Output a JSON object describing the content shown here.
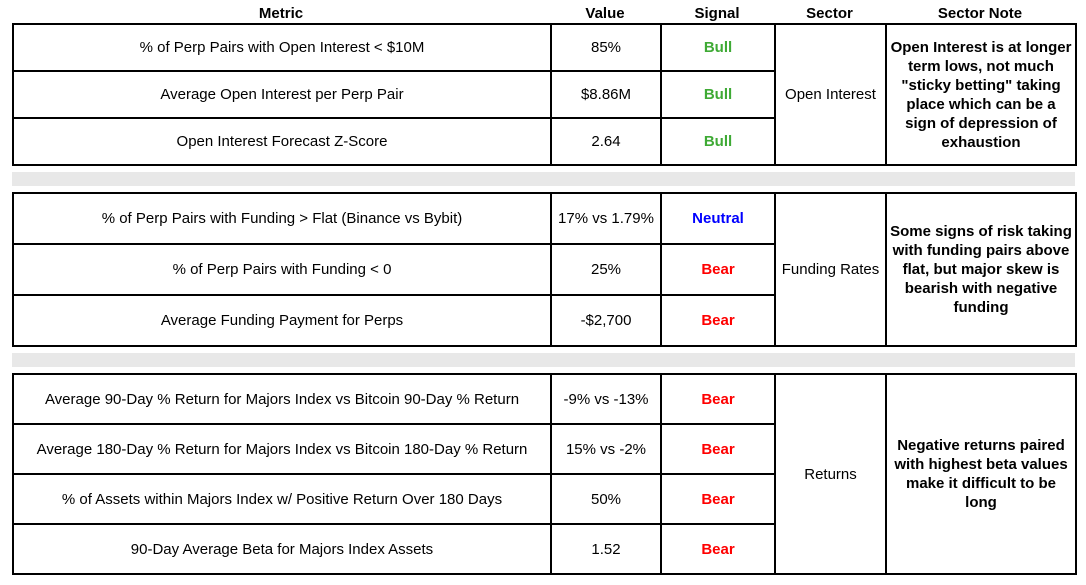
{
  "chart_data": {
    "type": "table",
    "headers": [
      "Metric",
      "Value",
      "Signal",
      "Sector",
      "Sector Note"
    ],
    "signal_colors": {
      "Bull": "#3faa35",
      "Neutral": "#0000ff",
      "Bear": "#ff0000"
    },
    "groups": [
      {
        "sector": "Open Interest",
        "sector_note": "Open Interest is at longer term lows, not much \"sticky betting\" taking place which can be a sign of depression of exhaustion",
        "rows": [
          {
            "metric": "% of Perp Pairs with Open Interest < $10M",
            "value": "85%",
            "signal": "Bull"
          },
          {
            "metric": "Average Open Interest per Perp Pair",
            "value": "$8.86M",
            "signal": "Bull"
          },
          {
            "metric": "Open Interest Forecast Z-Score",
            "value": "2.64",
            "signal": "Bull"
          }
        ]
      },
      {
        "sector": "Funding Rates",
        "sector_note": "Some signs of risk taking with funding pairs above flat, but major skew is bearish with negative funding",
        "rows": [
          {
            "metric": "% of Perp Pairs with Funding > Flat (Binance vs Bybit)",
            "value": "17% vs 1.79%",
            "signal": "Neutral"
          },
          {
            "metric": "% of Perp Pairs with Funding < 0",
            "value": "25%",
            "signal": "Bear"
          },
          {
            "metric": "Average Funding Payment for Perps",
            "value": "-$2,700",
            "signal": "Bear"
          }
        ]
      },
      {
        "sector": "Returns",
        "sector_note": "Negative returns paired with highest beta values make it difficult to be long",
        "rows": [
          {
            "metric": "Average 90-Day % Return for Majors Index vs Bitcoin 90-Day % Return",
            "value": "-9% vs -13%",
            "signal": "Bear"
          },
          {
            "metric": "Average 180-Day % Return for Majors Index vs Bitcoin 180-Day % Return",
            "value": "15% vs -2%",
            "signal": "Bear"
          },
          {
            "metric": "% of Assets within Majors Index w/ Positive Return Over 180 Days",
            "value": "50%",
            "signal": "Bear"
          },
          {
            "metric": "90-Day Average Beta for Majors Index Assets",
            "value": "1.52",
            "signal": "Bear"
          }
        ]
      }
    ]
  }
}
